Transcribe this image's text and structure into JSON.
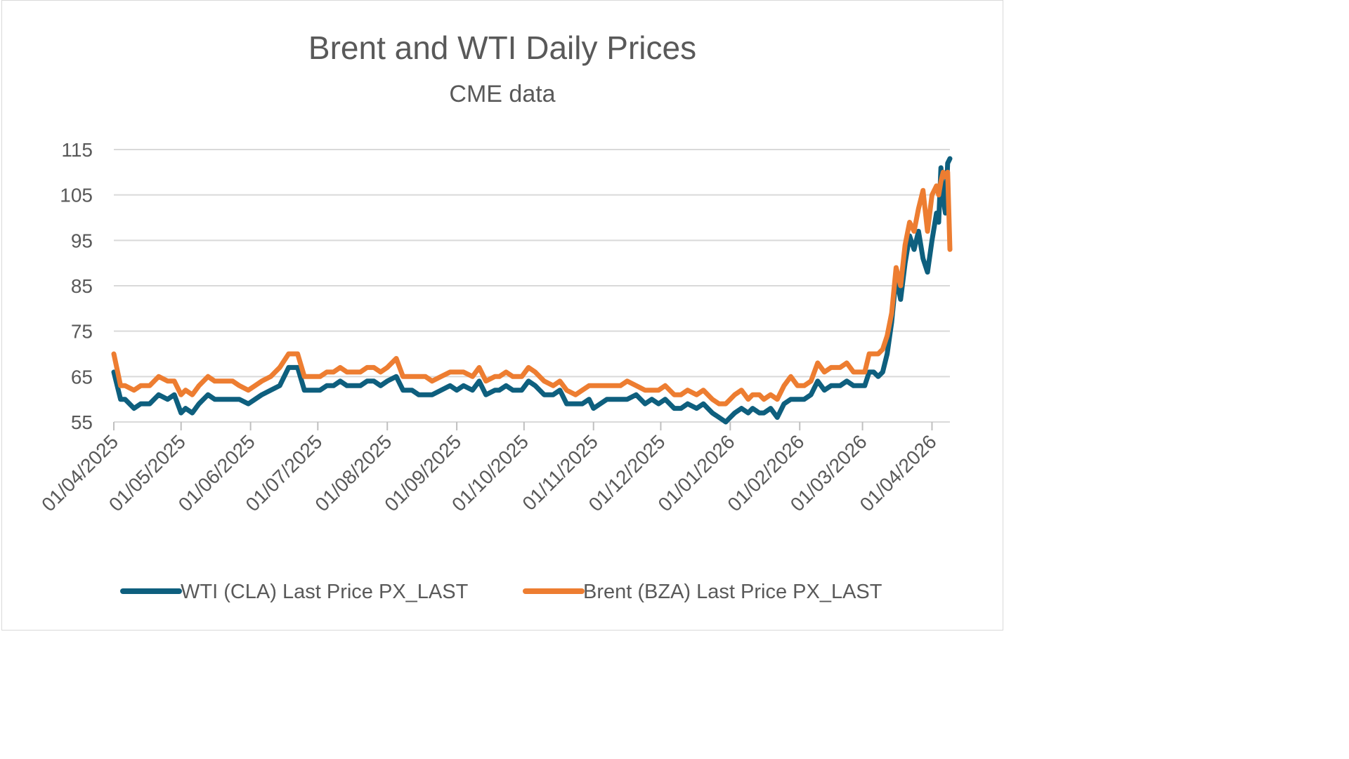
{
  "chart_data": {
    "type": "line",
    "title": "Brent and WTI Daily Prices",
    "subtitle": "CME data",
    "xlabel": "",
    "ylabel": "",
    "ylim": [
      55,
      115
    ],
    "yticks": [
      55,
      65,
      75,
      85,
      95,
      105,
      115
    ],
    "xtick_labels": [
      "01/04/2025",
      "01/05/2025",
      "01/06/2025",
      "01/07/2025",
      "01/08/2025",
      "01/09/2025",
      "01/10/2025",
      "01/11/2025",
      "01/12/2025",
      "01/01/2026",
      "01/02/2026",
      "01/03/2026",
      "01/04/2026"
    ],
    "x_range_days": [
      0,
      373
    ],
    "grid": true,
    "legend_position": "bottom",
    "series": [
      {
        "name": "WTI (CLA) Last Price PX_LAST",
        "color": "#0e5f7e",
        "days": [
          0,
          3,
          5,
          9,
          12,
          16,
          20,
          24,
          27,
          30,
          32,
          35,
          38,
          42,
          45,
          48,
          50,
          53,
          56,
          60,
          63,
          66,
          70,
          74,
          78,
          82,
          85,
          88,
          92,
          95,
          98,
          101,
          104,
          107,
          110,
          113,
          116,
          119,
          122,
          126,
          129,
          133,
          136,
          139,
          142,
          146,
          150,
          153,
          156,
          160,
          163,
          166,
          170,
          172,
          175,
          178,
          182,
          185,
          188,
          192,
          196,
          199,
          202,
          206,
          209,
          212,
          214,
          217,
          220,
          223,
          226,
          229,
          233,
          237,
          240,
          243,
          246,
          250,
          253,
          256,
          260,
          263,
          265,
          267,
          270,
          273,
          275,
          277,
          280,
          283,
          285,
          288,
          290,
          293,
          296,
          299,
          302,
          305,
          308,
          311,
          314,
          317,
          320,
          324,
          327,
          330,
          333,
          335,
          337,
          339,
          341,
          343,
          345,
          347,
          349,
          351,
          353,
          355,
          357,
          359,
          361,
          363,
          365,
          367,
          368,
          369,
          370,
          371,
          372,
          373
        ],
        "values": [
          66,
          60,
          60,
          58,
          59,
          59,
          61,
          60,
          61,
          57,
          58,
          57,
          59,
          61,
          60,
          60,
          60,
          60,
          60,
          59,
          60,
          61,
          62,
          63,
          67,
          67,
          62,
          62,
          62,
          63,
          63,
          64,
          63,
          63,
          63,
          64,
          64,
          63,
          64,
          65,
          62,
          62,
          61,
          61,
          61,
          62,
          63,
          62,
          63,
          62,
          64,
          61,
          62,
          62,
          63,
          62,
          62,
          64,
          63,
          61,
          61,
          62,
          59,
          59,
          59,
          60,
          58,
          59,
          60,
          60,
          60,
          60,
          61,
          59,
          60,
          59,
          60,
          58,
          58,
          59,
          58,
          59,
          58,
          57,
          56,
          55,
          56,
          57,
          58,
          57,
          58,
          57,
          57,
          58,
          56,
          59,
          60,
          60,
          60,
          61,
          64,
          62,
          63,
          63,
          64,
          63,
          63,
          63,
          66,
          66,
          65,
          66,
          70,
          77,
          87,
          82,
          90,
          96,
          93,
          97,
          91,
          88,
          95,
          101,
          99,
          111,
          104,
          101,
          112,
          113
        ]
      },
      {
        "name": "Brent (BZA) Last Price PX_LAST",
        "color": "#ed7d31",
        "days": [
          0,
          3,
          5,
          9,
          12,
          16,
          20,
          24,
          27,
          30,
          32,
          35,
          38,
          42,
          45,
          48,
          50,
          53,
          56,
          60,
          63,
          66,
          70,
          74,
          78,
          82,
          85,
          88,
          92,
          95,
          98,
          101,
          104,
          107,
          110,
          113,
          116,
          119,
          122,
          126,
          129,
          133,
          136,
          139,
          142,
          146,
          150,
          153,
          156,
          160,
          163,
          166,
          170,
          172,
          175,
          178,
          182,
          185,
          188,
          192,
          196,
          199,
          202,
          206,
          209,
          212,
          214,
          217,
          220,
          223,
          226,
          229,
          233,
          237,
          240,
          243,
          246,
          250,
          253,
          256,
          260,
          263,
          265,
          267,
          270,
          273,
          275,
          277,
          280,
          283,
          285,
          288,
          290,
          293,
          296,
          299,
          302,
          305,
          308,
          311,
          314,
          317,
          320,
          324,
          327,
          330,
          333,
          335,
          337,
          339,
          341,
          343,
          345,
          347,
          349,
          351,
          353,
          355,
          357,
          359,
          361,
          363,
          365,
          367,
          368,
          369,
          370,
          371,
          372,
          373
        ],
        "values": [
          70,
          63,
          63,
          62,
          63,
          63,
          65,
          64,
          64,
          61,
          62,
          61,
          63,
          65,
          64,
          64,
          64,
          64,
          63,
          62,
          63,
          64,
          65,
          67,
          70,
          70,
          65,
          65,
          65,
          66,
          66,
          67,
          66,
          66,
          66,
          67,
          67,
          66,
          67,
          69,
          65,
          65,
          65,
          65,
          64,
          65,
          66,
          66,
          66,
          65,
          67,
          64,
          65,
          65,
          66,
          65,
          65,
          67,
          66,
          64,
          63,
          64,
          62,
          61,
          62,
          63,
          63,
          63,
          63,
          63,
          63,
          64,
          63,
          62,
          62,
          62,
          63,
          61,
          61,
          62,
          61,
          62,
          61,
          60,
          59,
          59,
          60,
          61,
          62,
          60,
          61,
          61,
          60,
          61,
          60,
          63,
          65,
          63,
          63,
          64,
          68,
          66,
          67,
          67,
          68,
          66,
          66,
          66,
          70,
          70,
          70,
          71,
          74,
          79,
          89,
          85,
          94,
          99,
          97,
          102,
          106,
          97,
          105,
          107,
          105,
          108,
          110,
          109,
          110,
          93
        ]
      }
    ]
  }
}
